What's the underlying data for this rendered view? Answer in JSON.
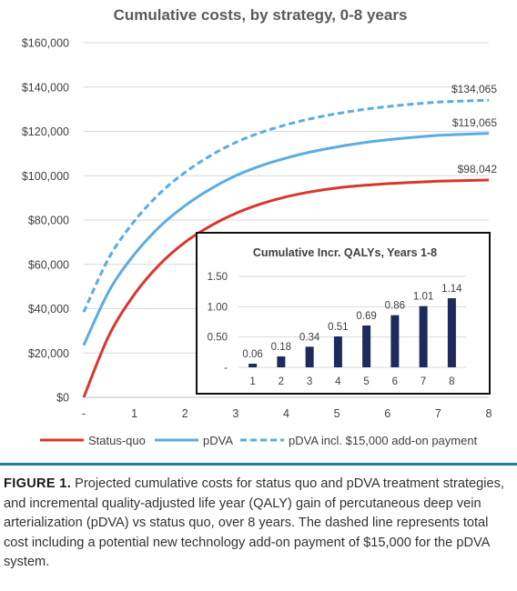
{
  "chart_data": [
    {
      "type": "line",
      "title": "Cumulative costs, by strategy, 0-8 years",
      "x_tick_labels": [
        "-",
        "1",
        "2",
        "3",
        "4",
        "5",
        "6",
        "7",
        "8"
      ],
      "y_tick_labels": [
        "$0",
        "$20,000",
        "$40,000",
        "$60,000",
        "$80,000",
        "$100,000",
        "$120,000",
        "$140,000",
        "$160,000"
      ],
      "xlim": [
        0,
        8
      ],
      "ylim": [
        0,
        160000
      ],
      "grid": "horizontal",
      "legend_position": "bottom",
      "x": [
        0,
        0.5,
        1,
        1.5,
        2,
        2.5,
        3,
        3.5,
        4,
        4.5,
        5,
        5.5,
        6,
        6.5,
        7,
        7.5,
        8
      ],
      "series": [
        {
          "name": "Status-quo",
          "style": "solid",
          "color": "#d9372b",
          "values": [
            0,
            28000,
            46500,
            60000,
            70000,
            77300,
            83000,
            87300,
            90500,
            92800,
            94500,
            95600,
            96400,
            97000,
            97500,
            97800,
            98042
          ],
          "end_label": "$98,042"
        },
        {
          "name": "pDVA",
          "style": "solid",
          "color": "#5aace2",
          "values": [
            23500,
            48000,
            64500,
            77000,
            86500,
            94000,
            100000,
            104500,
            108000,
            110800,
            113000,
            114800,
            116200,
            117300,
            118200,
            118700,
            119065
          ],
          "end_label": "$119,065"
        },
        {
          "name": "pDVA incl. $15,000 add-on payment",
          "style": "dashed",
          "color": "#5aace2",
          "values": [
            38500,
            63000,
            79500,
            92000,
            101500,
            109000,
            115000,
            119500,
            123000,
            125800,
            128000,
            129800,
            131200,
            132300,
            133200,
            133700,
            134065
          ],
          "end_label": "$134,065"
        }
      ]
    },
    {
      "type": "bar",
      "title": "Cumulative Incr. QALYs, Years 1-8",
      "categories": [
        "1",
        "2",
        "3",
        "4",
        "5",
        "6",
        "7",
        "8"
      ],
      "values": [
        0.06,
        0.18,
        0.34,
        0.51,
        0.69,
        0.86,
        1.01,
        1.14
      ],
      "value_labels": [
        "0.06",
        "0.18",
        "0.34",
        "0.51",
        "0.69",
        "0.86",
        "1.01",
        "1.14"
      ],
      "y_tick_labels": [
        "-",
        "0.50",
        "1.00",
        "1.50"
      ],
      "ylim": [
        0,
        1.5
      ],
      "color": "#1f2a5c"
    }
  ],
  "caption": {
    "label": "FIGURE 1.",
    "text": "Projected cumulative costs for status quo and pDVA treatment strategies, and incremental quality-adjusted life year (QALY) gain of percutaneous deep vein arterialization (pDVA) vs status quo, over 8 years. The dashed line represents total cost including a potential new technology add-on payment of $15,000 for the pDVA system."
  }
}
